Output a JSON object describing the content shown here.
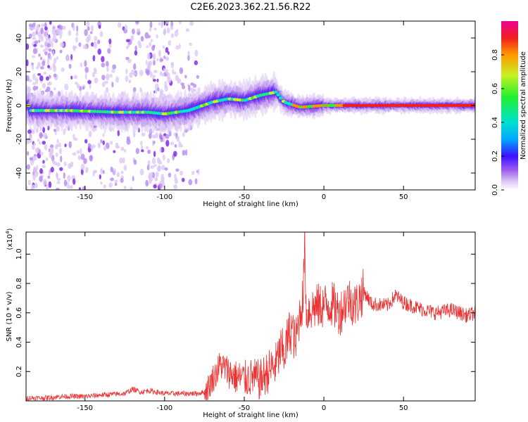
{
  "title": "C2E6.2023.362.21.56.R22",
  "colors": {
    "snr_line": "#ee3333",
    "colormap": [
      "#ffffff",
      "#dcc8f4",
      "#b78af0",
      "#7a1fe8",
      "#2a10ff",
      "#00b8ff",
      "#00e8c8",
      "#30f030",
      "#d0f020",
      "#ff9000",
      "#f02020",
      "#f00090"
    ]
  },
  "chart_data": [
    {
      "type": "heatmap",
      "xlabel": "Height of straight line (km)",
      "ylabel": "Frequency (Hz)",
      "xlim": [
        -187,
        95
      ],
      "ylim": [
        -50,
        50
      ],
      "xticks": [
        -150,
        -100,
        -50,
        0,
        50
      ],
      "yticks": [
        -40,
        -20,
        0,
        20,
        40
      ],
      "colorbar": {
        "label": "Normalized spectral amplitude",
        "range": [
          0.0,
          1.0
        ],
        "ticks": [
          "0.0",
          "0.2",
          "0.4",
          "0.6",
          "0.8"
        ]
      },
      "ridge_frequency_hz": [
        {
          "x": -185,
          "y": -3
        },
        {
          "x": -160,
          "y": -3
        },
        {
          "x": -130,
          "y": -4
        },
        {
          "x": -110,
          "y": -4
        },
        {
          "x": -100,
          "y": -5
        },
        {
          "x": -85,
          "y": -3
        },
        {
          "x": -70,
          "y": 2
        },
        {
          "x": -60,
          "y": 4
        },
        {
          "x": -50,
          "y": 3
        },
        {
          "x": -40,
          "y": 6
        },
        {
          "x": -30,
          "y": 8
        },
        {
          "x": -25,
          "y": 2
        },
        {
          "x": -15,
          "y": -1
        },
        {
          "x": 0,
          "y": 0
        },
        {
          "x": 10,
          "y": 0
        },
        {
          "x": 95,
          "y": 0
        }
      ]
    },
    {
      "type": "line",
      "xlabel": "Height of straight line (km)",
      "ylabel": "SNR (10 * v/v)",
      "multiplier": "(x10",
      "multiplier_exp": "4",
      "multiplier_close": ")",
      "xlim": [
        -187,
        95
      ],
      "ylim": [
        0,
        1.15
      ],
      "xticks": [
        -150,
        -100,
        -50,
        0,
        50
      ],
      "yticks": [
        "0.2",
        "0.4",
        "0.6",
        "0.8",
        "1.0"
      ],
      "series": [
        {
          "x": [
            -187,
            -175,
            -165,
            -150,
            -140,
            -125,
            -120,
            -115,
            -110,
            -100,
            -90,
            -80,
            -75,
            -72,
            -70,
            -68,
            -65,
            -60,
            -55,
            -50,
            -45,
            -40,
            -35,
            -30,
            -27,
            -25,
            -22,
            -20,
            -18,
            -15,
            -13,
            -12,
            -11,
            -10,
            -5,
            0,
            5,
            10,
            15,
            20,
            25,
            30,
            40,
            45,
            50,
            60,
            70,
            80,
            90,
            95
          ],
          "y": [
            0.02,
            0.02,
            0.03,
            0.03,
            0.04,
            0.05,
            0.08,
            0.06,
            0.07,
            0.05,
            0.05,
            0.05,
            0.06,
            0.1,
            0.15,
            0.18,
            0.25,
            0.2,
            0.16,
            0.15,
            0.16,
            0.14,
            0.2,
            0.25,
            0.35,
            0.32,
            0.45,
            0.5,
            0.38,
            0.6,
            0.7,
            1.12,
            0.55,
            0.62,
            0.64,
            0.65,
            0.66,
            0.6,
            0.7,
            0.65,
            0.75,
            0.66,
            0.65,
            0.72,
            0.67,
            0.63,
            0.6,
            0.62,
            0.58,
            0.6
          ]
        }
      ]
    }
  ]
}
